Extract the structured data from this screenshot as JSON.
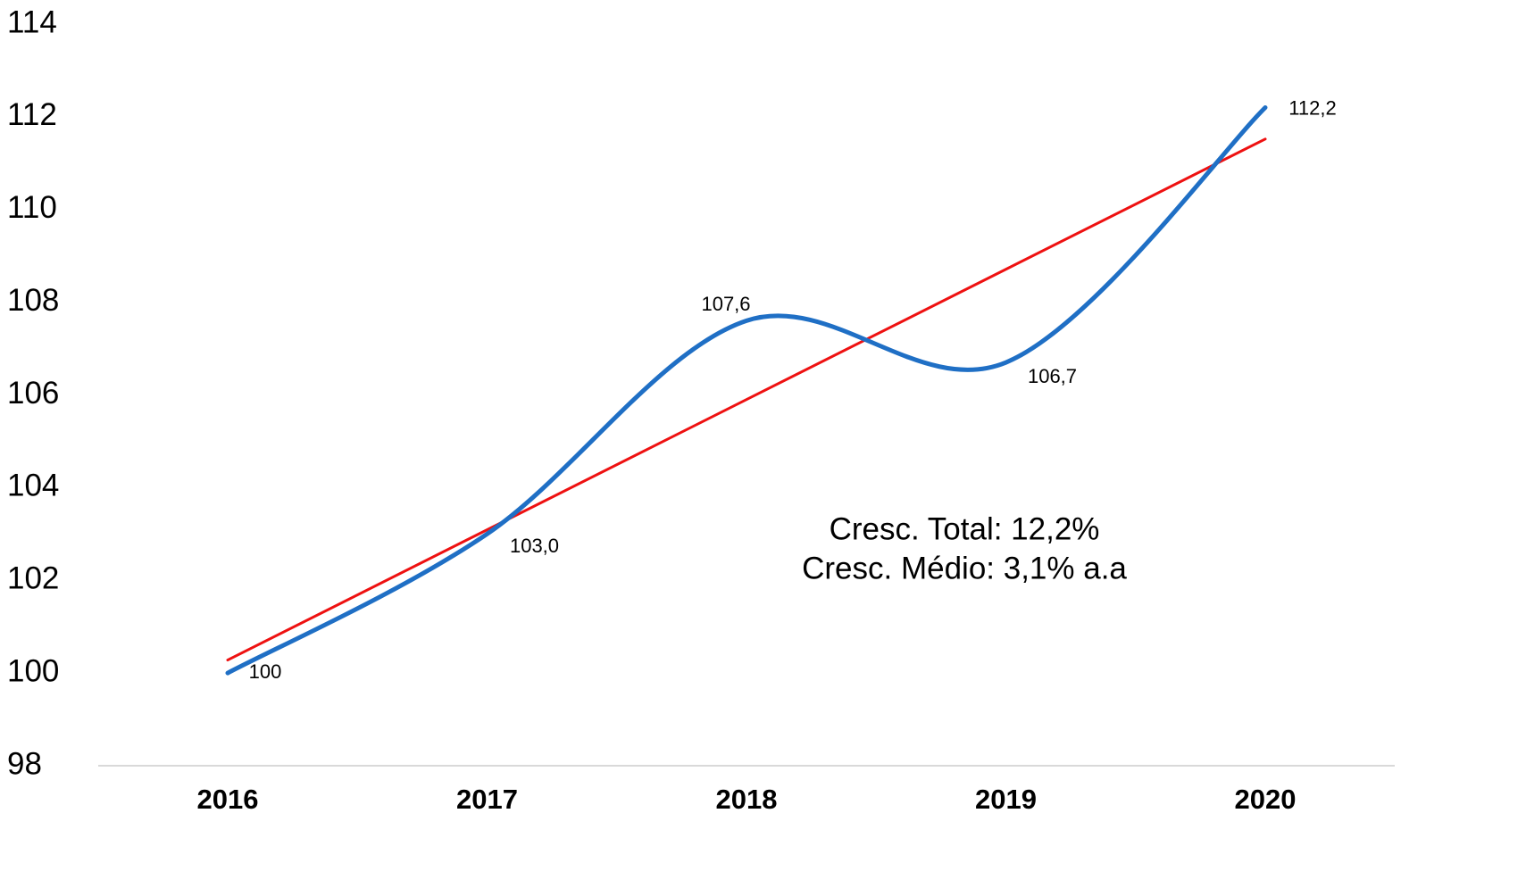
{
  "chart_data": {
    "type": "line",
    "categories": [
      "2016",
      "2017",
      "2018",
      "2019",
      "2020"
    ],
    "series": [
      {
        "color": "#1f6fc5",
        "smooth": true,
        "values": [
          100,
          103.0,
          107.6,
          106.7,
          112.2
        ],
        "value_labels": [
          "100",
          "103,0",
          "107,6",
          "106,7",
          "112,2"
        ]
      },
      {
        "color": "#ee1111",
        "smooth": false,
        "values": [
          100.28,
          103.09,
          105.9,
          108.71,
          111.52
        ]
      }
    ],
    "ylim": [
      98,
      114
    ],
    "yticks": [
      98,
      100,
      102,
      104,
      106,
      108,
      110,
      112,
      114
    ],
    "grid": false,
    "annotations": [
      "Cresc. Total: 12,2%",
      "Cresc. Médio: 3,1% a.a"
    ]
  }
}
